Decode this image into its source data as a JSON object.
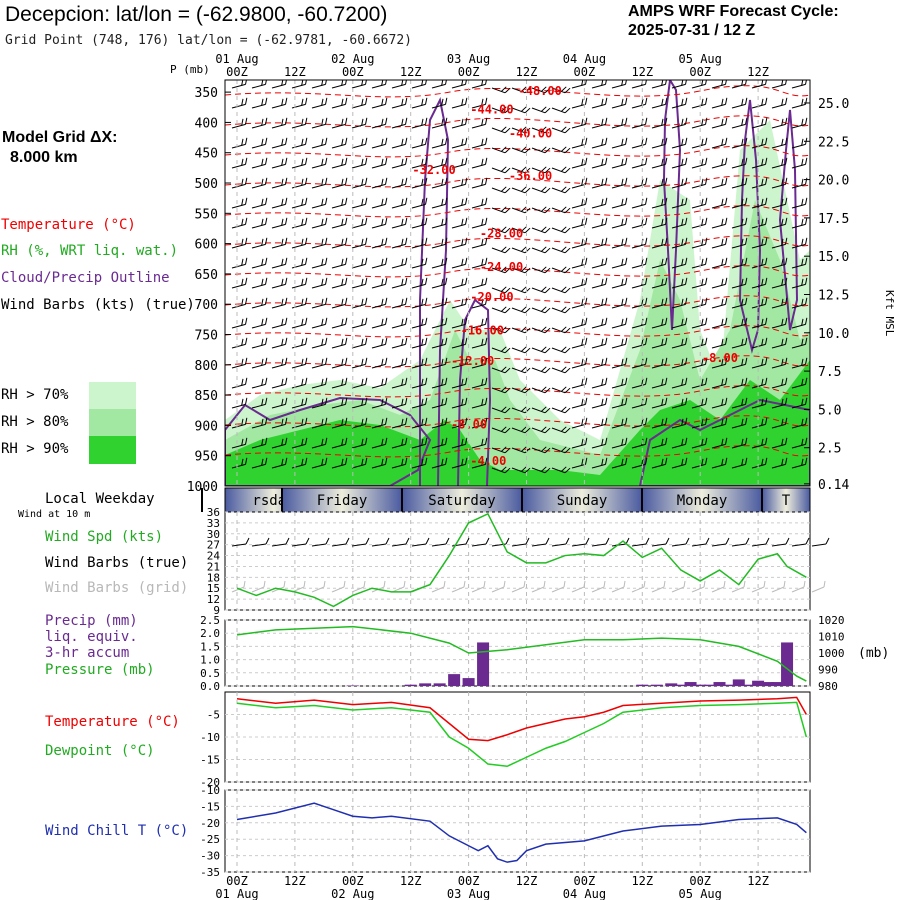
{
  "header": {
    "title": "Decepcion:  lat/lon = (-62.9800, -60.7200)",
    "grid_point": "Grid Point (748, 176) lat/lon = (-62.9781, -60.6672)",
    "cycle_line1": "AMPS WRF Forecast Cycle:",
    "cycle_line2": "2025-07-31 / 12  Z"
  },
  "model_grid": {
    "line1": "Model Grid ΔX:",
    "line2": "8.000 km"
  },
  "legend": {
    "temperature": "Temperature (°C)",
    "rh": "RH (%, WRT liq. wat.)",
    "cloud": "Cloud/Precip Outline",
    "wind": "Wind Barbs (kts) (true)",
    "rh70": "RH > 70%",
    "rh80": "RH > 80%",
    "rh90": "RH > 90%"
  },
  "colors": {
    "temperature": "#ee0000",
    "cloud": "#6a2a90",
    "rh70": "#cdf5cd",
    "rh80": "#a2e8a2",
    "rh90": "#2fd22f",
    "wind_speed": "#22bb22",
    "pressure": "#22bb22",
    "precip": "#6a2a90",
    "dewpoint": "#22cc22",
    "wind_chill": "#1f2fb0",
    "weekday_band_center": "#eeeedc",
    "weekday_band_edge": "#4a5aa0"
  },
  "time_axis": {
    "top_dates": [
      "01 Aug",
      "02 Aug",
      "03 Aug",
      "04 Aug",
      "05 Aug"
    ],
    "hour_labels": [
      "00Z",
      "12Z",
      "00Z",
      "12Z",
      "00Z",
      "12Z",
      "00Z",
      "12Z",
      "00Z",
      "12Z"
    ],
    "bottom_dates": [
      "01 Aug",
      "02 Aug",
      "03 Aug",
      "04 Aug",
      "05 Aug"
    ]
  },
  "weekday_strip": {
    "title": "Local Weekday",
    "days": [
      "rsday",
      "Friday",
      "Saturday",
      "Sunday",
      "Monday",
      "T"
    ]
  },
  "chart_data": [
    {
      "type": "heatmap",
      "name": "cross-section",
      "xlabel": "",
      "ylabel": "P (mb)",
      "y2label": "Kft MSL",
      "pressure_ticks": [
        "350",
        "400",
        "450",
        "500",
        "550",
        "600",
        "650",
        "700",
        "750",
        "800",
        "850",
        "900",
        "950",
        "1000"
      ],
      "height_ticks": [
        "25.0",
        "22.5",
        "20.0",
        "17.5",
        "15.0",
        "12.5",
        "10.0",
        "7.5",
        "5.0",
        "2.5",
        "0.14"
      ],
      "height_tick_kft": [
        25.0,
        22.5,
        20.0,
        17.5,
        15.0,
        12.5,
        10.0,
        7.5,
        5.0,
        2.5,
        0.14
      ],
      "ylim": [
        1000,
        330
      ],
      "temperature_labels": [
        {
          "text": "-48.00",
          "p": 355,
          "hour": 30
        },
        {
          "text": "-44.00",
          "p": 385,
          "hour": 25
        },
        {
          "text": "-40.00",
          "p": 425,
          "hour": 29
        },
        {
          "text": "-32.00",
          "p": 485,
          "hour": 19
        },
        {
          "text": "-36.00",
          "p": 495,
          "hour": 29
        },
        {
          "text": "-28.00",
          "p": 590,
          "hour": 26
        },
        {
          "text": "-24.00",
          "p": 645,
          "hour": 26
        },
        {
          "text": "-20.00",
          "p": 695,
          "hour": 25
        },
        {
          "text": "-16.00",
          "p": 750,
          "hour": 24
        },
        {
          "text": "-12.00",
          "p": 800,
          "hour": 23
        },
        {
          "text": "-8.00",
          "p": 795,
          "hour": 49
        },
        {
          "text": "-8.00",
          "p": 905,
          "hour": 23
        },
        {
          "text": "-4.00",
          "p": 965,
          "hour": 25
        }
      ]
    },
    {
      "type": "line",
      "name": "wind",
      "legend": [
        "Wind at 10 m",
        "Wind Spd (kts)",
        "Wind Barbs (true)",
        "Wind Barbs (grid)"
      ],
      "y_ticks": [
        "36",
        "33",
        "30",
        "27",
        "24",
        "21",
        "18",
        "15",
        "12",
        "9"
      ],
      "ylim": [
        9,
        36
      ],
      "x_hours": [
        0,
        2,
        4,
        6,
        8,
        10,
        12,
        14,
        16,
        18,
        20,
        22,
        24,
        26,
        28,
        30,
        32,
        34,
        36,
        38,
        40,
        42,
        44,
        46,
        48,
        50,
        52,
        54,
        56,
        57,
        59
      ],
      "wind_speed": [
        15,
        13,
        15,
        14,
        12.5,
        10,
        13,
        15,
        14,
        14,
        16,
        24,
        33,
        35.5,
        25,
        22,
        22,
        24,
        24.5,
        24,
        28,
        23.5,
        26,
        20,
        17,
        20,
        16,
        23,
        24.5,
        21,
        18
      ]
    },
    {
      "type": "bar",
      "name": "precip-pressure",
      "legend": [
        "Precip (mm)",
        "liq. equiv.",
        "3-hr accum",
        "Pressure (mb)"
      ],
      "y_ticks": [
        "2.5",
        "2.0",
        "1.5",
        "1.0",
        "0.5",
        "0.0"
      ],
      "y2_ticks": [
        "1020",
        "1010",
        "1000",
        "990",
        "980"
      ],
      "y2_unit": "(mb)",
      "ylim": [
        0,
        2.5
      ],
      "y2lim": [
        980,
        1020
      ],
      "x_hours": [
        0,
        4,
        8,
        12,
        18,
        22,
        24,
        28,
        36,
        40,
        44,
        48,
        52,
        56,
        58,
        59
      ],
      "pressure": [
        1011,
        1014,
        1015,
        1016,
        1012,
        1006,
        1000,
        1002,
        1008,
        1008,
        1009,
        1008,
        1004,
        995,
        986,
        983
      ],
      "precip_hours": [
        12,
        18,
        19.5,
        21,
        22.5,
        24,
        25.5,
        42,
        43.5,
        45,
        46,
        47,
        48,
        49,
        50,
        51,
        52,
        53,
        54,
        55,
        56,
        57
      ],
      "precip": [
        0.02,
        0.05,
        0.1,
        0.1,
        0.45,
        0.3,
        1.65,
        0.05,
        0.05,
        0.1,
        0.05,
        0.15,
        0.05,
        0.05,
        0.15,
        0.05,
        0.25,
        0.05,
        0.2,
        0.15,
        0.15,
        1.65
      ]
    },
    {
      "type": "line",
      "name": "temperature-dewpoint",
      "legend": [
        "Temperature (°C)",
        "Dewpoint (°C)"
      ],
      "y_ticks": [
        "-5",
        "-10",
        "-15",
        "-20"
      ],
      "ylim": [
        -20,
        0
      ],
      "x_hours": [
        0,
        4,
        8,
        12,
        16,
        20,
        22,
        24,
        26,
        28,
        30,
        32,
        34,
        36,
        38,
        40,
        44,
        48,
        52,
        56,
        58,
        59
      ],
      "temperature": [
        -1.5,
        -2.5,
        -1.8,
        -2.8,
        -2.3,
        -3.5,
        -7,
        -10.5,
        -10.8,
        -9.5,
        -8,
        -7,
        -6,
        -5.5,
        -4.5,
        -3,
        -2.5,
        -2,
        -1.8,
        -1.5,
        -1.2,
        -5
      ],
      "dewpoint": [
        -2.5,
        -3.5,
        -3,
        -4,
        -3.5,
        -4.5,
        -10,
        -12.5,
        -16,
        -16.5,
        -14.5,
        -12.5,
        -11,
        -9,
        -7,
        -4.5,
        -3.5,
        -3,
        -2.8,
        -2.5,
        -2.3,
        -10
      ]
    },
    {
      "type": "line",
      "name": "wind-chill",
      "legend": [
        "Wind Chill T (°C)"
      ],
      "y_ticks": [
        "-10",
        "-15",
        "-20",
        "-25",
        "-30",
        "-35"
      ],
      "ylim": [
        -35,
        -10
      ],
      "x_hours": [
        0,
        4,
        8,
        10,
        12,
        14,
        16,
        20,
        22,
        24,
        25,
        26,
        27,
        28,
        29,
        30,
        32,
        36,
        40,
        44,
        48,
        52,
        56,
        58,
        59
      ],
      "wind_chill": [
        -19,
        -17,
        -14,
        -16,
        -18,
        -18.5,
        -18,
        -19.5,
        -24,
        -27,
        -28.5,
        -27,
        -31,
        -32,
        -31.5,
        -28.5,
        -26.5,
        -25.5,
        -22.5,
        -21,
        -20.5,
        -19,
        -18.5,
        -20.5,
        -23
      ]
    }
  ]
}
